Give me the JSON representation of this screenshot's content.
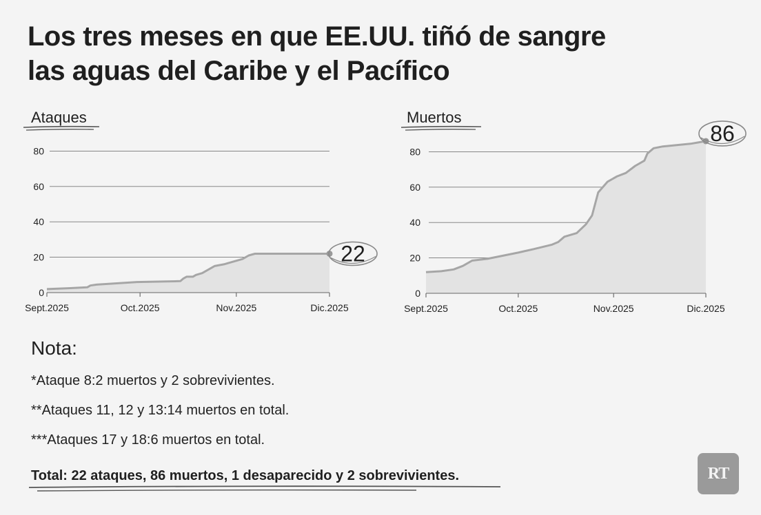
{
  "title_lines": [
    "Los tres meses en que EE.UU. tiñó de sangre",
    "las aguas del Caribe y el Pacífico"
  ],
  "chart_data": [
    {
      "type": "area",
      "title": "Ataques",
      "x_labels": [
        "Sept.2025",
        "Oct.2025",
        "Nov.2025",
        "Dic.2025"
      ],
      "x_range": [
        0,
        91
      ],
      "ylim": [
        0,
        88
      ],
      "y_ticks": [
        0,
        20,
        40,
        60,
        80
      ],
      "grid": true,
      "points": [
        [
          0,
          2
        ],
        [
          7,
          2.5
        ],
        [
          13,
          3
        ],
        [
          14,
          4
        ],
        [
          16,
          4.5
        ],
        [
          29,
          6
        ],
        [
          43,
          6.5
        ],
        [
          44,
          8
        ],
        [
          45,
          9
        ],
        [
          47,
          9
        ],
        [
          48,
          10
        ],
        [
          50,
          11
        ],
        [
          52,
          13
        ],
        [
          54,
          15
        ],
        [
          57,
          16
        ],
        [
          59,
          17
        ],
        [
          63,
          19
        ],
        [
          65,
          21
        ],
        [
          67,
          22
        ],
        [
          91,
          22
        ]
      ],
      "final_value": "22",
      "fill": "#e3e3e3",
      "line": "#a6a6a6"
    },
    {
      "type": "area",
      "title": "Muertos",
      "x_labels": [
        "Sept.2025",
        "Oct.2025",
        "Nov.2025",
        "Dic.2025"
      ],
      "x_range": [
        0,
        91
      ],
      "ylim": [
        0,
        88
      ],
      "y_ticks": [
        0,
        20,
        40,
        60,
        80
      ],
      "grid": true,
      "points": [
        [
          0,
          12
        ],
        [
          5,
          12.5
        ],
        [
          9,
          13.5
        ],
        [
          12,
          15.5
        ],
        [
          15,
          18.5
        ],
        [
          20,
          19.5
        ],
        [
          30,
          23
        ],
        [
          35,
          25
        ],
        [
          41,
          27.5
        ],
        [
          43,
          29
        ],
        [
          45,
          32
        ],
        [
          47,
          33
        ],
        [
          49,
          34
        ],
        [
          52,
          39
        ],
        [
          54,
          44
        ],
        [
          56,
          57
        ],
        [
          59,
          63
        ],
        [
          62,
          66
        ],
        [
          65,
          68
        ],
        [
          68,
          72
        ],
        [
          71,
          75
        ],
        [
          72,
          79
        ],
        [
          74,
          82
        ],
        [
          77,
          83
        ],
        [
          86,
          84.5
        ],
        [
          91,
          86
        ]
      ],
      "final_value": "86",
      "fill": "#e3e3e3",
      "line": "#a6a6a6"
    }
  ],
  "nota": {
    "title": "Nota:",
    "lines": [
      "*Ataque 8:2 muertos y 2 sobrevivientes.",
      "**Ataques 11, 12 y 13:14 muertos en total.",
      "***Ataques 17 y 18:6 muertos en total."
    ]
  },
  "total": "Total: 22 ataques, 86 muertos, 1 desaparecido y 2 sobrevivientes.",
  "logo": "RT"
}
